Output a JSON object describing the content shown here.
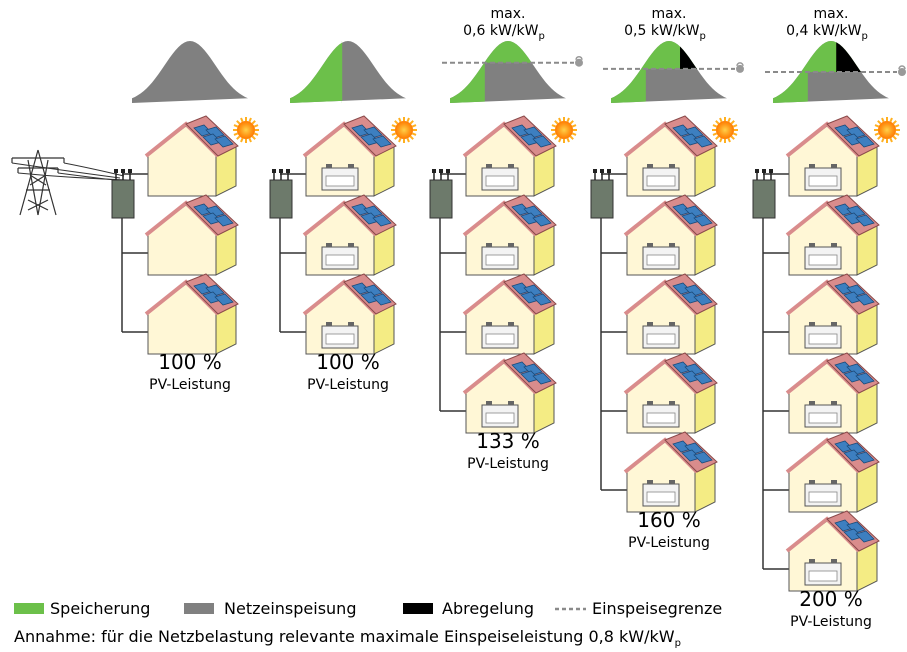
{
  "colors": {
    "storage": "#6cc04a",
    "grid_feed": "#808080",
    "curtail": "#000000",
    "limit_line": "#8a8a8a",
    "roof": "#d98c8c",
    "wall": "#fff7d6",
    "side": "#f4ec84",
    "panel": "#3d7fc0",
    "inverter": "#6d7a6b",
    "sun": "#ff9a1a"
  },
  "scenarios": [
    {
      "id": "s1",
      "max_label": "",
      "max_value": "",
      "pct": "100 %",
      "pv_label": "PV-Leistung",
      "houses": 3,
      "battery": false,
      "storage_fraction": 0,
      "curtail_fraction": 0
    },
    {
      "id": "s2",
      "max_label": "",
      "max_value": "",
      "pct": "100 %",
      "pv_label": "PV-Leistung",
      "houses": 3,
      "battery": true,
      "storage_fraction": 0.3,
      "curtail_fraction": 0
    },
    {
      "id": "s3",
      "max_label": "max.",
      "max_value": "0,6 kW/kW",
      "max_sub": "p",
      "pct": "133 %",
      "pv_label": "PV-Leistung",
      "houses": 4,
      "battery": true,
      "storage_fraction": 0.35,
      "curtail_fraction": 0
    },
    {
      "id": "s4",
      "max_label": "max.",
      "max_value": "0,5 kW/kW",
      "max_sub": "p",
      "pct": "160 %",
      "pv_label": "PV-Leistung",
      "houses": 5,
      "battery": true,
      "storage_fraction": 0.45,
      "curtail_fraction": 0.05
    },
    {
      "id": "s5",
      "max_label": "max.",
      "max_value": "0,4 kW/kW",
      "max_sub": "p",
      "pct": "200 %",
      "pv_label": "PV-Leistung",
      "houses": 6,
      "battery": true,
      "storage_fraction": 0.5,
      "curtail_fraction": 0.15
    }
  ],
  "legend": {
    "storage": "Speicherung",
    "grid_feed": "Netzeinspeisung",
    "curtail": "Abregelung",
    "limit": "Einspeisegrenze"
  },
  "assumption": {
    "text": "Annahme: für die Netzbelastung relevante maximale Einspeiseleistung 0,8 kW/kW",
    "sub": "p"
  }
}
